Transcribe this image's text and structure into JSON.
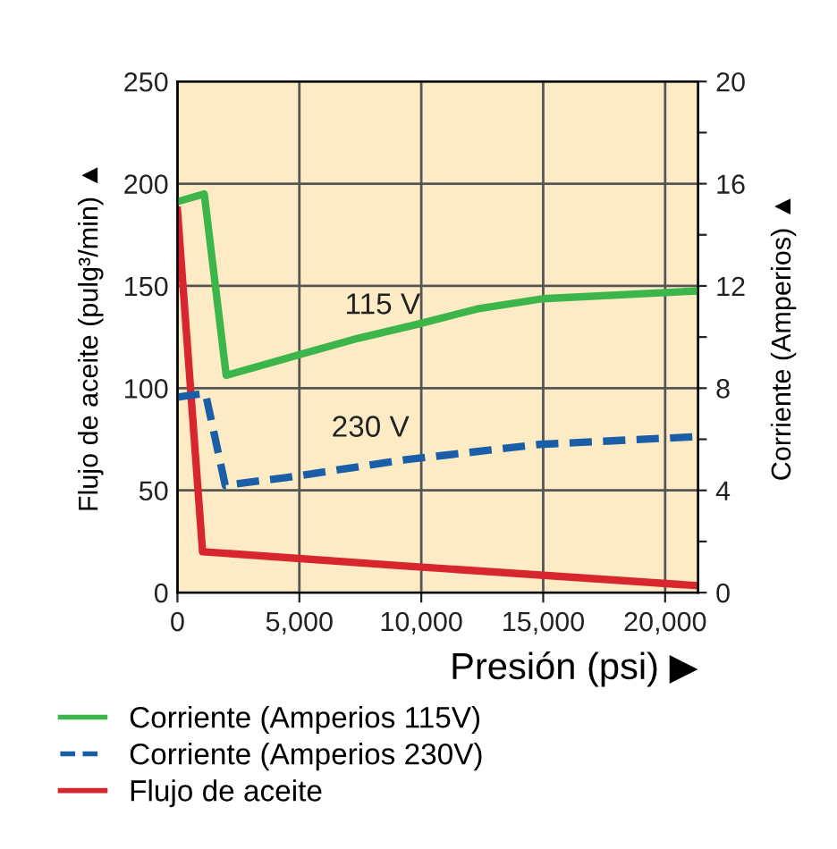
{
  "chart_data": {
    "type": "line",
    "xlabel": "Presión (psi) ▶",
    "ylabel": "Flujo de aceite (pulg³/min) ▲",
    "y2label": "Corriente (Amperios) ▲",
    "xlim": [
      0,
      21350
    ],
    "xticks": [
      {
        "value": 0,
        "label": "0"
      },
      {
        "value": 5000,
        "label": "5,000"
      },
      {
        "value": 10000,
        "label": "10,000"
      },
      {
        "value": 15000,
        "label": "15,000"
      },
      {
        "value": 20000,
        "label": "20,000"
      }
    ],
    "ylim": [
      0,
      250
    ],
    "yticks": [
      0,
      50,
      100,
      150,
      200,
      250
    ],
    "y2lim": [
      0,
      20
    ],
    "y2ticks": [
      0,
      {
        "value": 2,
        "label": null
      },
      4,
      {
        "value": 6,
        "label": null
      },
      8,
      {
        "value": 10,
        "label": null
      },
      12,
      {
        "value": 14,
        "label": null
      },
      16,
      {
        "value": 18,
        "label": null
      },
      20
    ],
    "grid": true,
    "legend": "bottom",
    "marker": "none",
    "series": [
      {
        "name": "Corriente (Amperios 115V)",
        "color": "#3cb54a",
        "axis": "y2",
        "line_style": "solid",
        "x": [
          0,
          1100,
          2000,
          4950,
          7400,
          9840,
          12290,
          14980,
          21220
        ],
        "values": [
          15.3,
          15.6,
          8.5,
          9.3,
          9.95,
          10.5,
          11.1,
          11.5,
          11.8
        ]
      },
      {
        "name": "Corriente (Amperios 230V)",
        "color": "#1a5ea8",
        "axis": "y2",
        "line_style": "dashed",
        "x": [
          0,
          1150,
          1960,
          4450,
          9350,
          14860,
          21220
        ],
        "values": [
          7.65,
          7.8,
          4.2,
          4.5,
          5.2,
          5.8,
          6.1
        ]
      },
      {
        "name": "Flujo de aceite",
        "color": "#d7262e",
        "line_style": "solid",
        "x": [
          0,
          1030,
          9350,
          21220
        ],
        "values": [
          187,
          20,
          13,
          3.5
        ]
      }
    ],
    "annotations": [
      "115 V",
      "230 V"
    ]
  }
}
